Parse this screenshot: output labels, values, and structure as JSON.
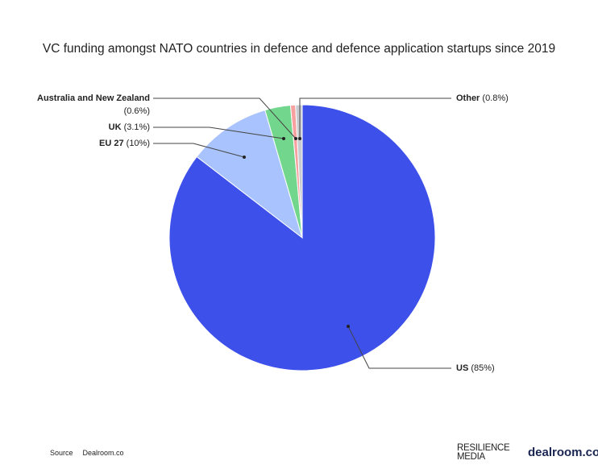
{
  "chart_data": {
    "type": "pie",
    "title": "VC funding amongst NATO countries in defence and defence application startups since 2019",
    "slices": [
      {
        "name": "US",
        "value": 85,
        "label": "(85%)",
        "color": "#3d50ea"
      },
      {
        "name": "EU 27",
        "value": 10,
        "label": "(10%)",
        "color": "#a8c3fd"
      },
      {
        "name": "UK",
        "value": 3.1,
        "label": "(3.1%)",
        "color": "#72d68c"
      },
      {
        "name": "Australia and New Zealand",
        "value": 0.6,
        "label": "(0.6%)",
        "color": "#f7a0a0"
      },
      {
        "name": "Other",
        "value": 0.8,
        "label": "(0.8%)",
        "color": "#c8cbcf"
      }
    ]
  },
  "footer": {
    "source_label": "Source",
    "source_value": "Dealroom.co",
    "logo1_line1": "RESILIENCE",
    "logo1_line2": "MEDIA",
    "logo2": "dealroom.co"
  }
}
